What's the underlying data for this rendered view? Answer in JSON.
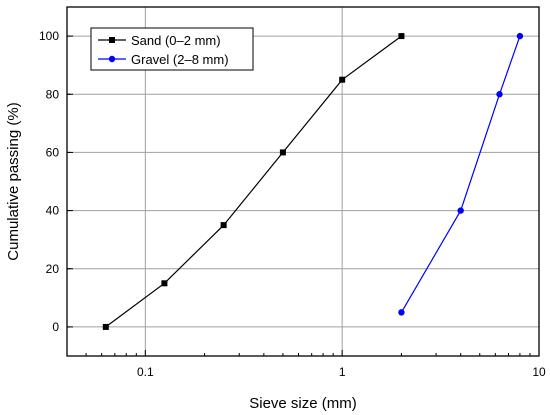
{
  "chart_data": {
    "type": "line",
    "xlabel": "Sieve size (mm)",
    "ylabel": "Cumulative passing (%)",
    "xscale": "log",
    "xlim": [
      0.04,
      10
    ],
    "ylim": [
      -10,
      110
    ],
    "x_ticks": [
      {
        "value": 0.1,
        "label": "0.1"
      },
      {
        "value": 1,
        "label": "1"
      },
      {
        "value": 10,
        "label": "10"
      }
    ],
    "y_ticks": [
      {
        "value": 0,
        "label": "0"
      },
      {
        "value": 20,
        "label": "20"
      },
      {
        "value": 40,
        "label": "40"
      },
      {
        "value": 60,
        "label": "60"
      },
      {
        "value": 80,
        "label": "80"
      },
      {
        "value": 100,
        "label": "100"
      }
    ],
    "grid": true,
    "legend_position": "top-left",
    "series": [
      {
        "name": "Sand (0–2 mm)",
        "color": "#000000",
        "marker": "square",
        "points": [
          [
            0.063,
            0
          ],
          [
            0.125,
            15
          ],
          [
            0.25,
            35
          ],
          [
            0.5,
            60
          ],
          [
            1,
            85
          ],
          [
            2,
            100
          ]
        ]
      },
      {
        "name": "Gravel (2–8 mm)",
        "color": "#0000ff",
        "marker": "circle",
        "points": [
          [
            2,
            5
          ],
          [
            4,
            40
          ],
          [
            6.3,
            80
          ],
          [
            8,
            100
          ]
        ]
      }
    ]
  }
}
